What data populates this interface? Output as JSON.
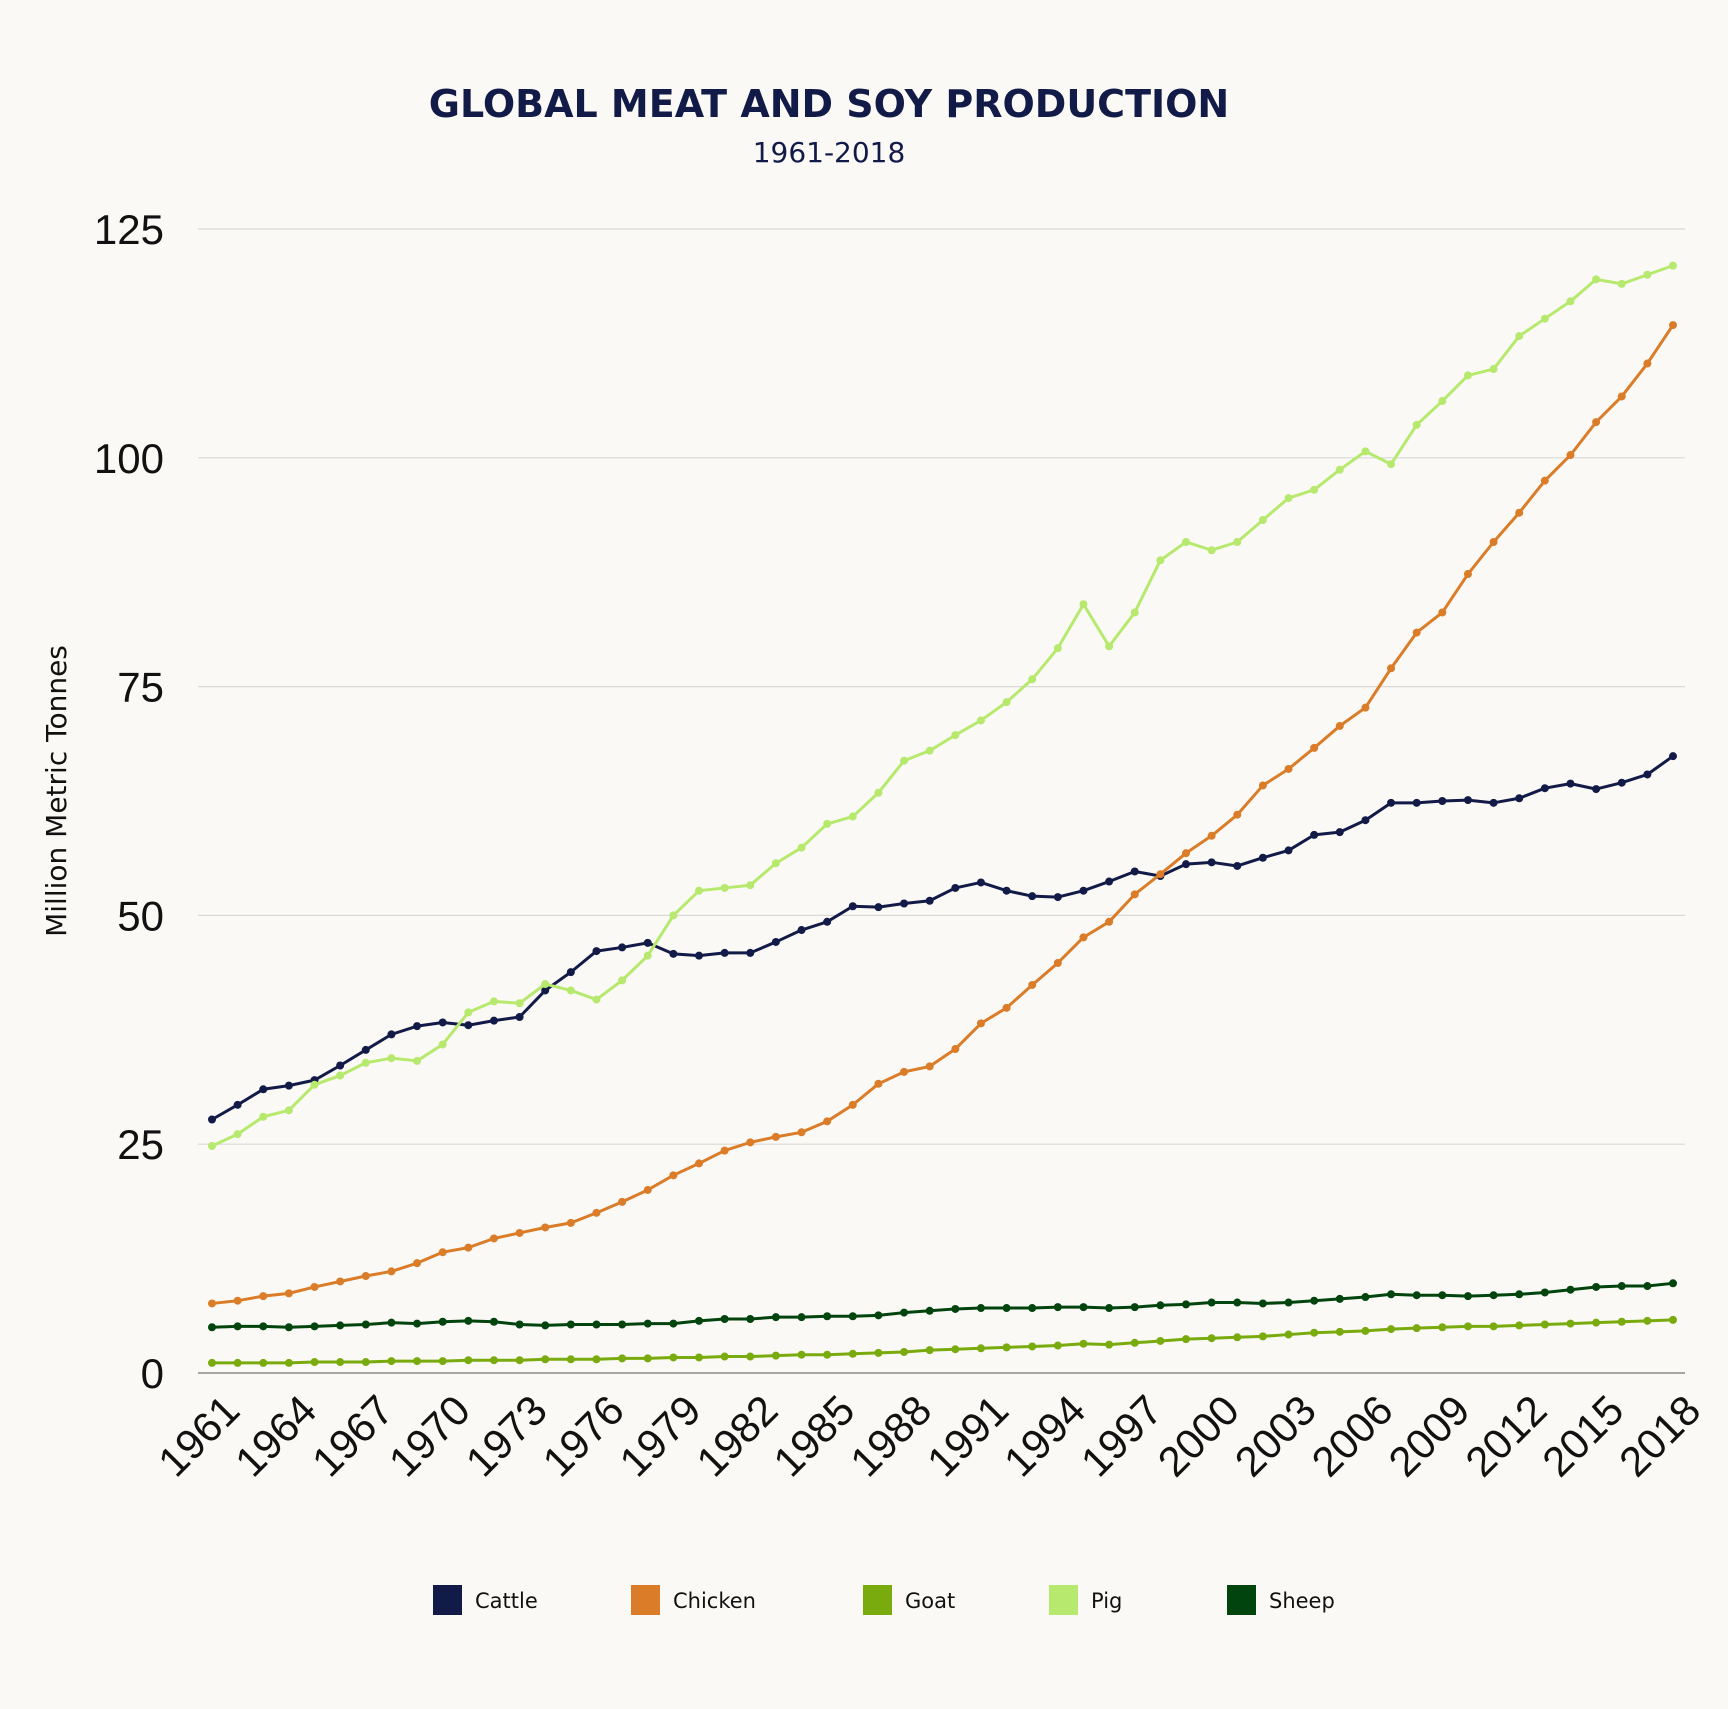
{
  "chart_data": {
    "type": "line",
    "title": "GLOBAL MEAT AND SOY PRODUCTION",
    "subtitle": "1961-2018",
    "ylabel": "Million Metric Tonnes",
    "xlabel": "",
    "ylim": [
      0,
      125
    ],
    "yticks": [
      0,
      25,
      50,
      75,
      100,
      125
    ],
    "grid": true,
    "legend_position": "bottom",
    "x": [
      1961,
      1962,
      1963,
      1964,
      1965,
      1966,
      1967,
      1968,
      1969,
      1970,
      1971,
      1972,
      1973,
      1974,
      1975,
      1976,
      1977,
      1978,
      1979,
      1980,
      1981,
      1982,
      1983,
      1984,
      1985,
      1986,
      1987,
      1988,
      1989,
      1990,
      1991,
      1992,
      1993,
      1994,
      1995,
      1996,
      1997,
      1998,
      1999,
      2000,
      2001,
      2002,
      2003,
      2004,
      2005,
      2006,
      2007,
      2008,
      2009,
      2010,
      2011,
      2012,
      2013,
      2014,
      2015,
      2016,
      2017,
      2018
    ],
    "xticks": [
      "1961",
      "1964",
      "1967",
      "1970",
      "1973",
      "1976",
      "1979",
      "1982",
      "1985",
      "1988",
      "1991",
      "1994",
      "1997",
      "2000",
      "2003",
      "2006",
      "2009",
      "2012",
      "2015",
      "2018"
    ],
    "series": [
      {
        "name": "Cattle",
        "color": "#121a47",
        "values": [
          27.7,
          29.3,
          31.0,
          31.4,
          32.0,
          33.6,
          35.3,
          37.0,
          37.9,
          38.3,
          38.0,
          38.5,
          38.9,
          41.8,
          43.8,
          46.1,
          46.5,
          47.0,
          45.8,
          45.6,
          45.9,
          45.9,
          47.1,
          48.4,
          49.3,
          51.0,
          50.9,
          51.3,
          51.6,
          53.0,
          53.6,
          52.7,
          52.1,
          52.0,
          52.7,
          53.7,
          54.8,
          54.3,
          55.6,
          55.8,
          55.4,
          56.3,
          57.1,
          58.8,
          59.1,
          60.4,
          62.3,
          62.3,
          62.5,
          62.6,
          62.3,
          62.8,
          63.9,
          64.4,
          63.8,
          64.5,
          65.4,
          67.4
        ]
      },
      {
        "name": "Chicken",
        "color": "#da7c28",
        "values": [
          7.6,
          7.9,
          8.4,
          8.7,
          9.4,
          10.0,
          10.6,
          11.1,
          12.0,
          13.2,
          13.7,
          14.7,
          15.3,
          15.9,
          16.4,
          17.5,
          18.7,
          20.0,
          21.6,
          22.9,
          24.3,
          25.2,
          25.8,
          26.3,
          27.5,
          29.3,
          31.6,
          32.9,
          33.5,
          35.4,
          38.2,
          39.9,
          42.4,
          44.8,
          47.6,
          49.3,
          52.3,
          54.5,
          56.8,
          58.7,
          61.0,
          64.2,
          66.0,
          68.3,
          70.7,
          72.7,
          77.0,
          80.9,
          83.1,
          87.3,
          90.8,
          94.0,
          97.5,
          100.3,
          103.9,
          106.7,
          110.3,
          114.5
        ]
      },
      {
        "name": "Goat",
        "color": "#7aab0e",
        "values": [
          1.1,
          1.1,
          1.1,
          1.1,
          1.2,
          1.2,
          1.2,
          1.3,
          1.3,
          1.3,
          1.4,
          1.4,
          1.4,
          1.5,
          1.5,
          1.5,
          1.6,
          1.6,
          1.7,
          1.7,
          1.8,
          1.8,
          1.9,
          2.0,
          2.0,
          2.1,
          2.2,
          2.3,
          2.5,
          2.6,
          2.7,
          2.8,
          2.9,
          3.0,
          3.2,
          3.1,
          3.3,
          3.5,
          3.7,
          3.8,
          3.9,
          4.0,
          4.2,
          4.4,
          4.5,
          4.6,
          4.8,
          4.9,
          5.0,
          5.1,
          5.1,
          5.2,
          5.3,
          5.4,
          5.5,
          5.6,
          5.7,
          5.8
        ]
      },
      {
        "name": "Pig",
        "color": "#b6e96d",
        "values": [
          24.8,
          26.1,
          28.0,
          28.7,
          31.5,
          32.5,
          33.9,
          34.4,
          34.1,
          35.9,
          39.4,
          40.6,
          40.4,
          42.5,
          41.8,
          40.8,
          42.9,
          45.6,
          50.0,
          52.7,
          53.0,
          53.3,
          55.7,
          57.4,
          60.0,
          60.8,
          63.4,
          66.9,
          68.0,
          69.7,
          71.3,
          73.3,
          75.8,
          79.2,
          84.0,
          79.4,
          83.1,
          88.8,
          90.8,
          89.9,
          90.8,
          93.2,
          95.6,
          96.5,
          98.7,
          100.7,
          99.3,
          103.6,
          106.2,
          109.0,
          109.7,
          113.3,
          115.2,
          117.1,
          119.5,
          119.0,
          120.0,
          121.0
        ]
      },
      {
        "name": "Sheep",
        "color": "#02440e",
        "values": [
          5.0,
          5.1,
          5.1,
          5.0,
          5.1,
          5.2,
          5.3,
          5.5,
          5.4,
          5.6,
          5.7,
          5.6,
          5.3,
          5.2,
          5.3,
          5.3,
          5.3,
          5.4,
          5.4,
          5.7,
          5.9,
          5.9,
          6.1,
          6.1,
          6.2,
          6.2,
          6.3,
          6.6,
          6.8,
          7.0,
          7.1,
          7.1,
          7.1,
          7.2,
          7.2,
          7.1,
          7.2,
          7.4,
          7.5,
          7.7,
          7.7,
          7.6,
          7.7,
          7.9,
          8.1,
          8.3,
          8.6,
          8.5,
          8.5,
          8.4,
          8.5,
          8.6,
          8.8,
          9.1,
          9.4,
          9.5,
          9.5,
          9.8
        ]
      }
    ]
  }
}
